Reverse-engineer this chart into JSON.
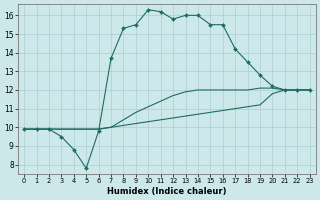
{
  "xlabel": "Humidex (Indice chaleur)",
  "bg_color": "#cce8ea",
  "grid_color": "#aacfd4",
  "line_color": "#1f6b60",
  "xlim": [
    -0.5,
    23.5
  ],
  "ylim": [
    7.5,
    16.6
  ],
  "xticks": [
    0,
    1,
    2,
    3,
    4,
    5,
    6,
    7,
    8,
    9,
    10,
    11,
    12,
    13,
    14,
    15,
    16,
    17,
    18,
    19,
    20,
    21,
    22,
    23
  ],
  "yticks": [
    8,
    9,
    10,
    11,
    12,
    13,
    14,
    15,
    16
  ],
  "series_bottom_x": [
    0,
    1,
    2,
    3,
    4,
    5,
    6,
    7,
    8,
    9,
    10,
    11,
    12,
    13,
    14,
    15,
    16,
    17,
    18,
    19,
    20,
    21,
    22,
    23
  ],
  "series_bottom_y": [
    9.9,
    9.9,
    9.9,
    9.9,
    9.9,
    9.9,
    9.9,
    10.0,
    10.1,
    10.2,
    10.3,
    10.4,
    10.5,
    10.6,
    10.7,
    10.8,
    10.9,
    11.0,
    11.1,
    11.2,
    11.8,
    12.0,
    12.0,
    12.0
  ],
  "series_mid_x": [
    0,
    1,
    2,
    3,
    4,
    5,
    6,
    7,
    8,
    9,
    10,
    11,
    12,
    13,
    14,
    15,
    16,
    17,
    18,
    19,
    20,
    21,
    22,
    23
  ],
  "series_mid_y": [
    9.9,
    9.9,
    9.9,
    9.9,
    9.9,
    9.9,
    9.9,
    10.0,
    10.4,
    10.8,
    11.1,
    11.4,
    11.7,
    11.9,
    12.0,
    12.0,
    12.0,
    12.0,
    12.0,
    12.1,
    12.1,
    12.0,
    12.0,
    12.0
  ],
  "series_top_x": [
    0,
    1,
    2,
    3,
    4,
    5,
    6,
    7,
    8,
    9,
    10,
    11,
    12,
    13,
    14,
    15,
    16,
    17,
    18,
    19,
    20,
    21,
    22,
    23
  ],
  "series_top_y": [
    9.9,
    9.9,
    9.9,
    9.5,
    8.8,
    7.8,
    9.8,
    13.7,
    15.3,
    15.5,
    16.3,
    16.2,
    15.8,
    16.0,
    16.0,
    15.5,
    15.5,
    14.2,
    13.5,
    12.8,
    12.2,
    12.0,
    12.0,
    12.0
  ]
}
